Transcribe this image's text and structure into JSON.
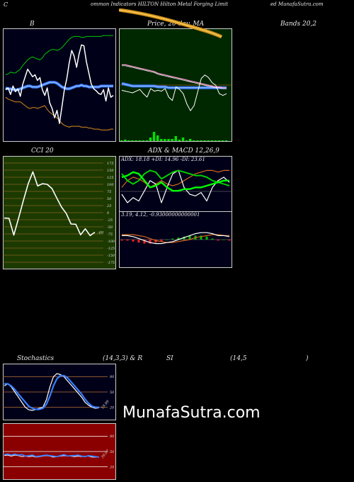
{
  "header": {
    "left": "C",
    "main": "ommon Indicators HILTON Hilton Metal Forging Limit",
    "right": "ed MunafaSutra.com"
  },
  "watermark": "MunafaSutra.com",
  "colors": {
    "bg": "#000000",
    "white": "#ffffff",
    "blue": "#3a7dff",
    "green": "#00c800",
    "orange": "#d88a1a",
    "gold": "#e8a33a",
    "cci_bg": "#1c3a00",
    "rsi_bg": "#8a0000"
  },
  "panels": {
    "bollinger": {
      "title": "B",
      "subtitle": "Bands 20,2"
    },
    "price": {
      "title": "Price, 20 day, MA"
    },
    "cci": {
      "title": "CCI 20",
      "value_label": "-69",
      "ticks": [
        "175",
        "150",
        "125",
        "100",
        "75",
        "50",
        "25",
        "0",
        "-25",
        "-50",
        "-75",
        "-100",
        "-125",
        "-150",
        "-175"
      ]
    },
    "adx": {
      "title": "ADX  & MACD 12,26,9",
      "adx_label": "ADX: 18.18  +DI: 14.96  -DI: 23.61",
      "macd_label": "3.19,  4.12,  -0.93000000000001"
    },
    "stoch": {
      "title_left": "Stochastics",
      "title_mid": "(14,3,3) & R",
      "title_si": "SI",
      "title_rsi": "(14,5",
      "title_end": ")",
      "ticks": [
        "80",
        "50",
        "20"
      ],
      "value_label": "19.99"
    },
    "rsi": {
      "ticks": [
        "80",
        "50",
        "20"
      ],
      "value_label": "39.07"
    }
  },
  "chart_data": [
    {
      "type": "line",
      "name": "bollinger",
      "series": [
        {
          "name": "upper",
          "color": "#00c800",
          "values": [
            64,
            65,
            67,
            66,
            66,
            68,
            70,
            74,
            77,
            80,
            82,
            83,
            82,
            81,
            80,
            82,
            86,
            88,
            90,
            91,
            91,
            90,
            91,
            93,
            96,
            99,
            102,
            104,
            105,
            105,
            105,
            104,
            104,
            105,
            105,
            105,
            105,
            105,
            105,
            105,
            106,
            106,
            106,
            106,
            106
          ]
        },
        {
          "name": "middle",
          "color": "#3a7dff",
          "values": [
            50,
            49,
            49,
            48,
            48,
            48,
            49,
            50,
            51,
            52,
            52,
            51,
            51,
            51,
            52,
            53,
            54,
            55,
            56,
            56,
            56,
            55,
            53,
            51,
            50,
            49,
            49,
            50,
            51,
            52,
            52,
            53,
            52,
            52,
            51,
            51,
            51,
            51,
            51,
            52,
            52,
            52,
            52,
            52,
            52
          ]
        },
        {
          "name": "lower",
          "color": "#d88a1a",
          "values": [
            40,
            38,
            37,
            36,
            35,
            35,
            35,
            33,
            31,
            29,
            28,
            29,
            29,
            28,
            29,
            30,
            31,
            27,
            24,
            22,
            20,
            18,
            15,
            12,
            10,
            9,
            8,
            9,
            9,
            9,
            9,
            8,
            8,
            8,
            7,
            7,
            6,
            6,
            6,
            5,
            5,
            5,
            5,
            6,
            6
          ]
        },
        {
          "name": "price",
          "color": "#ffffff",
          "values": [
            48,
            50,
            43,
            52,
            46,
            49,
            41,
            54,
            62,
            70,
            66,
            62,
            64,
            58,
            61,
            48,
            42,
            50,
            34,
            28,
            18,
            26,
            12,
            30,
            48,
            60,
            77,
            90,
            84,
            72,
            86,
            96,
            95,
            78,
            66,
            54,
            49,
            47,
            44,
            43,
            48,
            36,
            50,
            40,
            42
          ]
        }
      ]
    },
    {
      "type": "line",
      "name": "price_ma",
      "series": [
        {
          "name": "ma20",
          "color": "#ff9ad5",
          "values": [
            78,
            78,
            77,
            76,
            75,
            74,
            73,
            72,
            71,
            70,
            68,
            67,
            66,
            65,
            64,
            63,
            62,
            61,
            60,
            59,
            58,
            57,
            56,
            55,
            54,
            53,
            52,
            52,
            51,
            51
          ]
        },
        {
          "name": "ma_blue",
          "color": "#3a7dff",
          "values": [
            56,
            55,
            54,
            53,
            53,
            53,
            53,
            53,
            53,
            53,
            52,
            52,
            52,
            51,
            51,
            51,
            51,
            51,
            51,
            51,
            51,
            51,
            51,
            51,
            51,
            51,
            51,
            51,
            51,
            51
          ]
        },
        {
          "name": "price",
          "color": "#ffffff",
          "values": [
            48,
            47,
            46,
            45,
            47,
            49,
            44,
            40,
            50,
            47,
            48,
            47,
            50,
            40,
            36,
            52,
            49,
            44,
            32,
            24,
            30,
            46,
            62,
            66,
            63,
            57,
            54,
            44,
            42,
            44
          ]
        },
        {
          "name": "volume",
          "color": "#00e000",
          "values": [
            1,
            2,
            1,
            1,
            1,
            1,
            1,
            1,
            5,
            13,
            8,
            3,
            3,
            3,
            3,
            7,
            2,
            5,
            1,
            3,
            1,
            1,
            1,
            1,
            1,
            1,
            1,
            1,
            1,
            1
          ]
        }
      ]
    },
    {
      "type": "line",
      "name": "cci",
      "ylim": [
        -175,
        175
      ],
      "series": [
        {
          "name": "cci",
          "color": "#ffffff",
          "values": [
            -19,
            -20,
            -79,
            -20,
            42,
            101,
            144,
            94,
            102,
            100,
            85,
            52,
            20,
            -3,
            -40,
            -41,
            -78,
            -57,
            -81,
            -69
          ]
        }
      ]
    },
    {
      "type": "line",
      "name": "adx",
      "series": [
        {
          "name": "adx",
          "color": "#00d000",
          "values": [
            20,
            21,
            23,
            22,
            18,
            14,
            15,
            17,
            14,
            12,
            12,
            13,
            13,
            14,
            14,
            15,
            16,
            17,
            18,
            18
          ]
        },
        {
          "name": "plus_di",
          "color": "#00d000",
          "values": [
            22,
            18,
            16,
            18,
            22,
            24,
            23,
            19,
            21,
            23,
            24,
            23,
            22,
            21,
            21,
            20,
            18,
            17,
            16,
            15
          ]
        },
        {
          "name": "minus_di",
          "color": "#d2691e",
          "values": [
            14,
            18,
            20,
            19,
            17,
            14,
            16,
            18,
            16,
            15,
            16,
            18,
            20,
            22,
            23,
            24,
            24,
            23,
            24,
            24
          ]
        },
        {
          "name": "dx",
          "color": "#ffffff",
          "values": [
            10,
            5,
            8,
            6,
            12,
            18,
            16,
            5,
            14,
            22,
            24,
            14,
            10,
            9,
            11,
            6,
            14,
            18,
            20,
            17
          ]
        }
      ]
    },
    {
      "type": "line",
      "name": "macd",
      "series": [
        {
          "name": "macd",
          "color": "#ffffff",
          "values": [
            4,
            4,
            3,
            1,
            -1,
            -3,
            -4,
            -4,
            -3,
            -2,
            0,
            2,
            4,
            6,
            7,
            7,
            6,
            4,
            4,
            3
          ]
        },
        {
          "name": "signal",
          "color": "#d2691e",
          "values": [
            5,
            5,
            5,
            4,
            3,
            1,
            -1,
            -2,
            -3,
            -3,
            -2,
            -1,
            0,
            2,
            3,
            4,
            5,
            5,
            4,
            4
          ]
        },
        {
          "name": "histogram",
          "color": "#ff2020",
          "values": [
            -1,
            -1,
            -2,
            -3,
            -4,
            -4,
            -3,
            -2,
            0,
            1,
            2,
            3,
            4,
            4,
            4,
            3,
            1,
            -1,
            0,
            -1
          ]
        }
      ]
    },
    {
      "type": "line",
      "name": "stochastics",
      "ylim": [
        0,
        100
      ],
      "series": [
        {
          "name": "k",
          "color": "#ffffff",
          "values": [
            62,
            66,
            60,
            50,
            40,
            30,
            20,
            15,
            14,
            16,
            18,
            20,
            35,
            60,
            80,
            86,
            84,
            80,
            72,
            64,
            56,
            48,
            40,
            30,
            24,
            20,
            18,
            19
          ]
        },
        {
          "name": "d",
          "color": "#3a7dff",
          "values": [
            66,
            66,
            62,
            55,
            46,
            38,
            30,
            22,
            18,
            16,
            16,
            18,
            26,
            42,
            62,
            76,
            82,
            82,
            78,
            70,
            62,
            54,
            46,
            36,
            28,
            22,
            20,
            20
          ]
        }
      ]
    },
    {
      "type": "line",
      "name": "rsi",
      "ylim": [
        0,
        100
      ],
      "series": [
        {
          "name": "rsi_blue",
          "color": "#3a7dff",
          "values": [
            44,
            45,
            43,
            45,
            43,
            44,
            41,
            42,
            43,
            40,
            41,
            42,
            43,
            42,
            41,
            40,
            42,
            44,
            41,
            42,
            42,
            43,
            41,
            40,
            42,
            41,
            40,
            39
          ]
        },
        {
          "name": "rsi_white",
          "color": "#ffffff",
          "values": [
            42,
            43,
            41,
            43,
            42,
            40,
            41,
            40,
            41,
            39,
            40,
            41,
            42,
            41,
            39,
            40,
            41,
            42,
            41,
            41,
            40,
            41,
            40,
            41,
            41,
            39,
            39,
            39
          ]
        }
      ]
    }
  ]
}
